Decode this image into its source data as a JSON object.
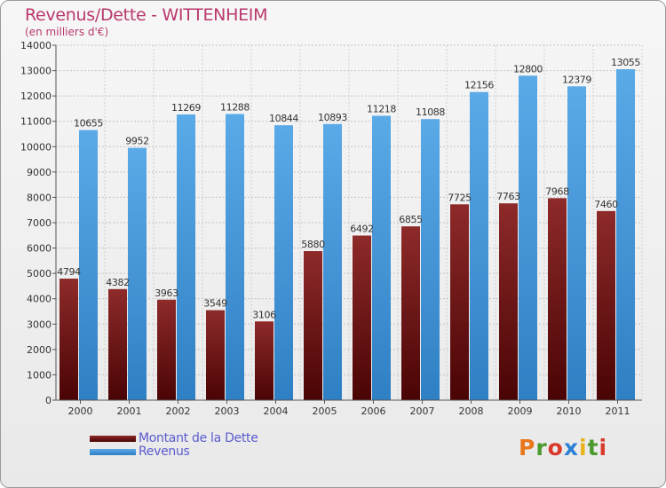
{
  "title": "Revenus/Dette - WITTENHEIM",
  "subtitle": "(en milliers d'€)",
  "logo": {
    "text": "Proxiti",
    "colors": [
      "#e8771b",
      "#4a9a2e",
      "#d8392b",
      "#2b7fd4",
      "#e8b31b",
      "#4a9a2e",
      "#d8392b"
    ]
  },
  "chart_data": {
    "type": "bar",
    "categories": [
      "2000",
      "2001",
      "2002",
      "2003",
      "2004",
      "2005",
      "2006",
      "2007",
      "2008",
      "2009",
      "2010",
      "2011"
    ],
    "series": [
      {
        "name": "Montant de la Dette",
        "color": "#7a1414",
        "values": [
          4794,
          4382,
          3963,
          3549,
          3106,
          5880,
          6492,
          6855,
          7725,
          7763,
          7968,
          7460
        ]
      },
      {
        "name": "Revenus",
        "color": "#4a9de0",
        "values": [
          10655,
          9952,
          11269,
          11288,
          10844,
          10893,
          11218,
          11088,
          12156,
          12800,
          12379,
          13055
        ]
      }
    ],
    "ylim": [
      0,
      14000
    ],
    "yticks": [
      "0",
      "1000",
      "2000",
      "3000",
      "4000",
      "5000",
      "6000",
      "7000",
      "8000",
      "9000",
      "10000",
      "11000",
      "12000",
      "13000",
      "14000"
    ],
    "grid": true,
    "legend": "bottom-left"
  }
}
